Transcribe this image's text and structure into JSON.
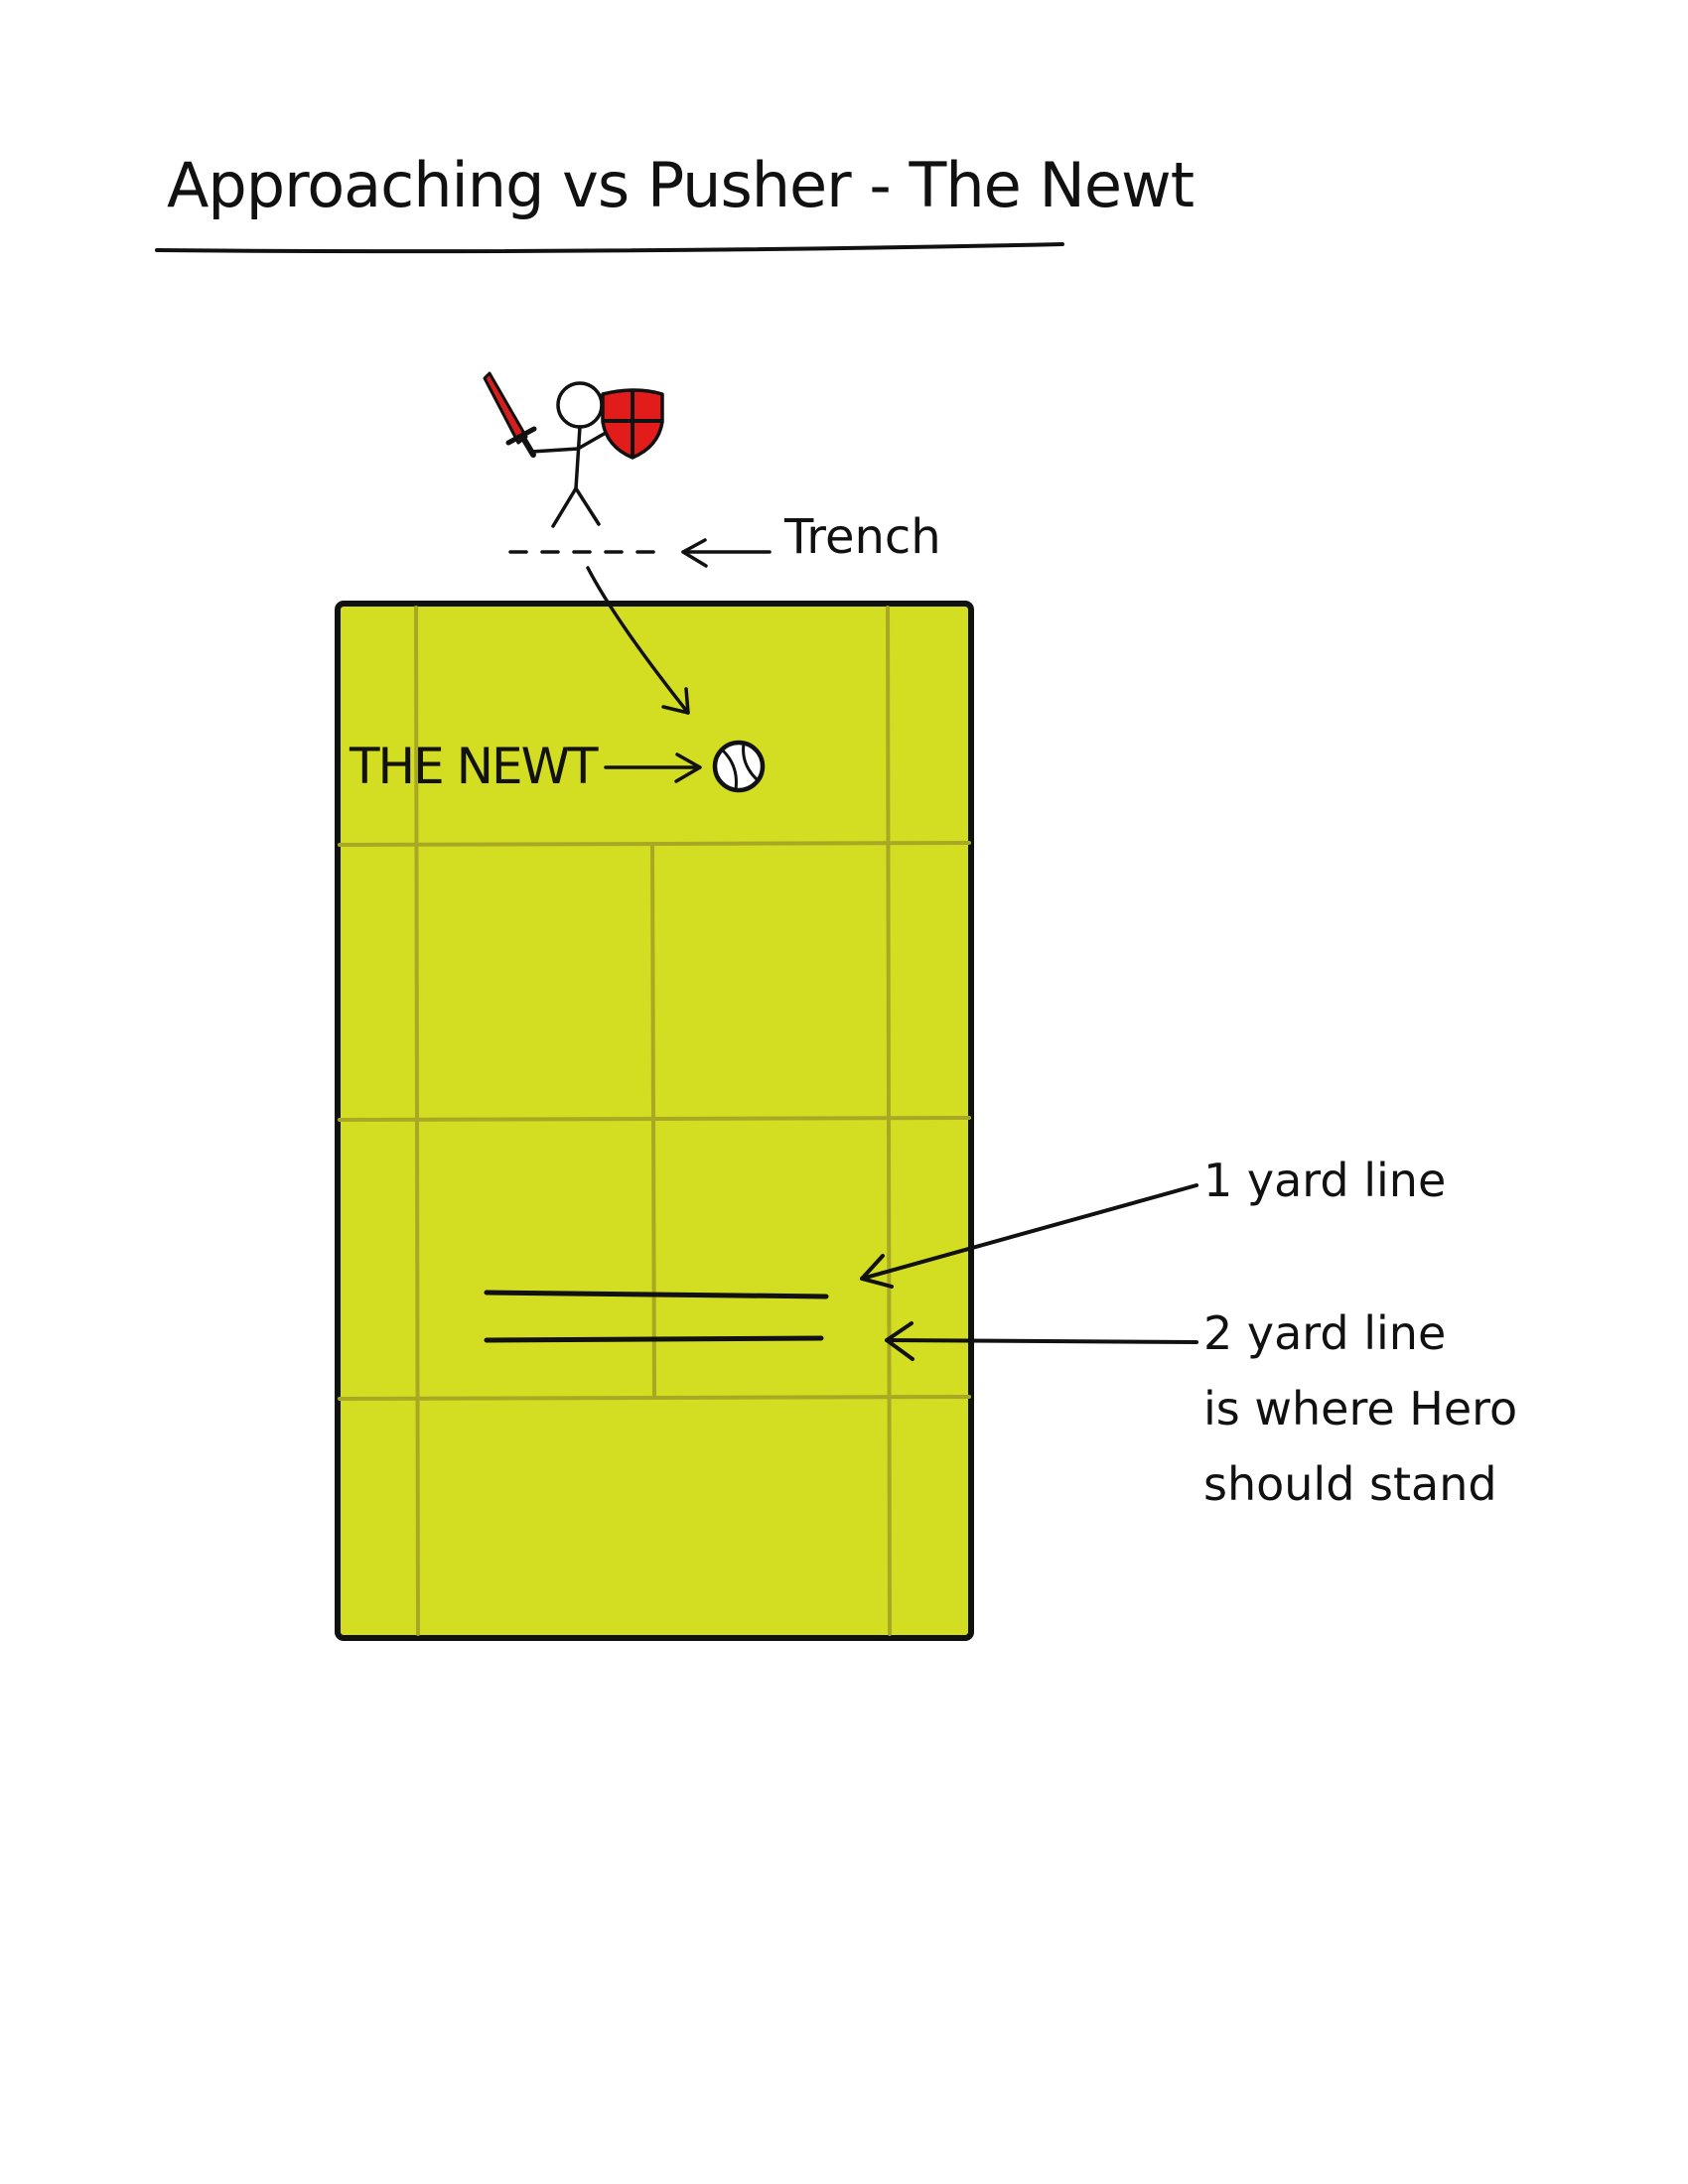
{
  "title": "Approaching vs Pusher - The Newt",
  "labels": {
    "trench": "Trench",
    "the_newt": "THE NEWT",
    "one_yard_line": "1 yard line",
    "two_yard_note": [
      "2 yard line",
      "is where Hero",
      "should stand"
    ]
  },
  "colors": {
    "court_fill": "#d3de22",
    "court_lines": "#a8a824",
    "ink": "#111111",
    "shield_red": "#e21b1b",
    "sword_red": "#d61e1e"
  },
  "icons": {
    "hero": "stick-figure-with-sword-and-shield-icon",
    "ball": "tennis-ball-icon"
  }
}
